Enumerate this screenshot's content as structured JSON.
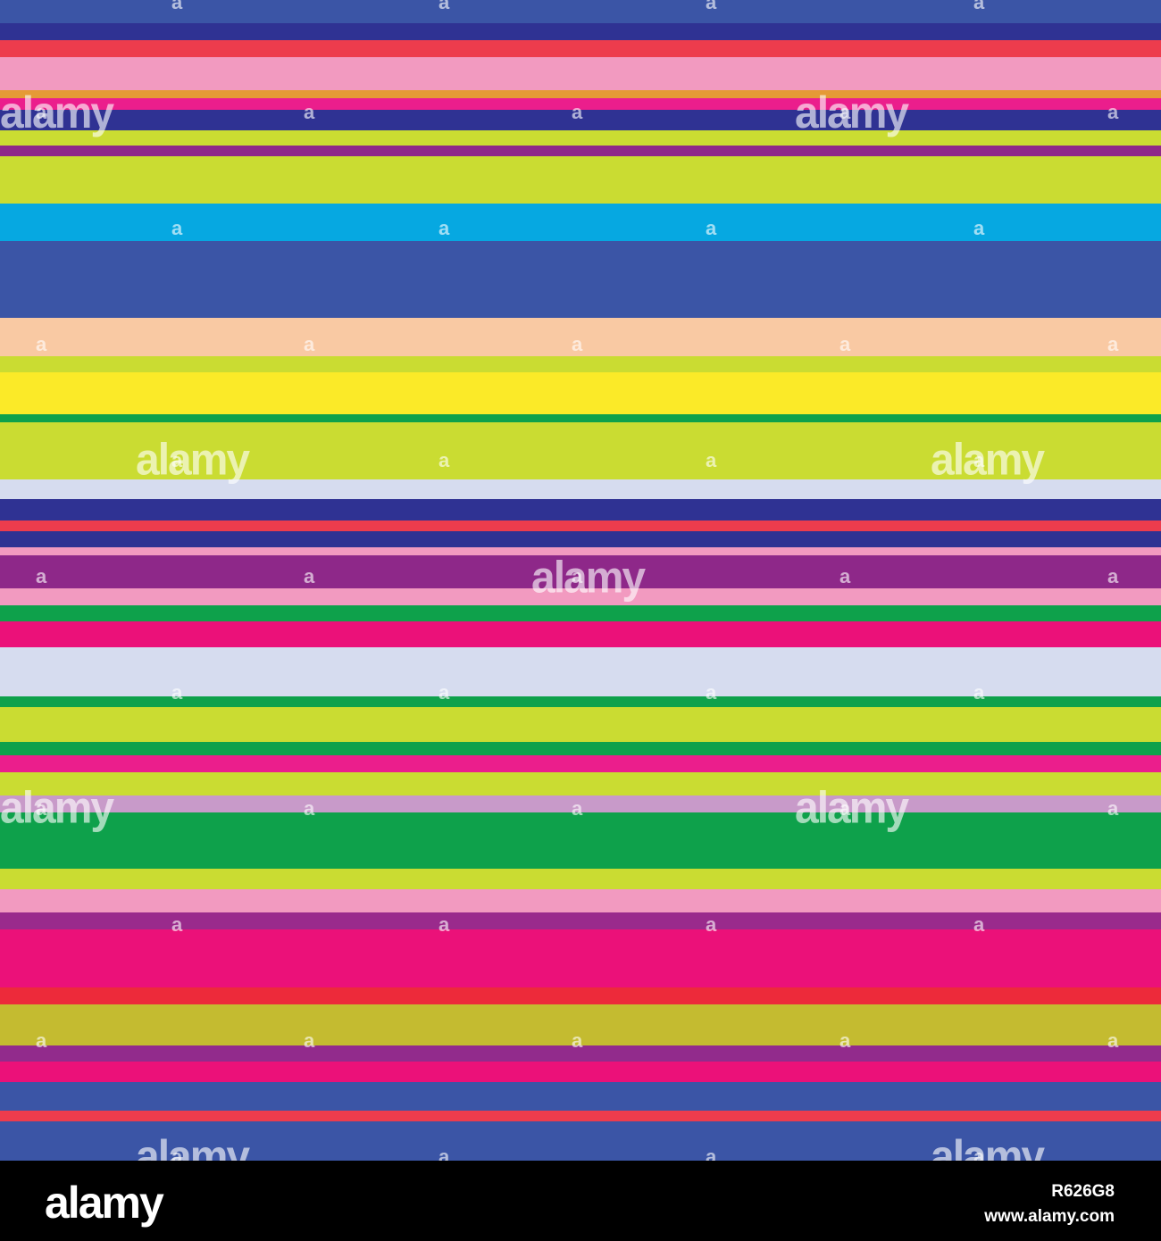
{
  "stripes": [
    "#3b55a6",
    "#2f3293",
    "#ed3c4d",
    "#f29ac0",
    "#e59a36",
    "#eb1e8c",
    "#2f3293",
    "#cadc32",
    "#8e2889",
    "#cadc32",
    "#06a8e1",
    "#3b55a6",
    "#f9c9a3",
    "#cadc32",
    "#fbea28",
    "#0ea14b",
    "#cadc32",
    "#d6dcef",
    "#2f3293",
    "#ed3c4d",
    "#2f3293",
    "#f29ac0",
    "#8e2889",
    "#f29ac0",
    "#0ea14b",
    "#eb1179",
    "#d6dcef",
    "#0ea14b",
    "#cadc32",
    "#0ea14b",
    "#eb1e8c",
    "#cadc32",
    "#c89ac9",
    "#0ea14b",
    "#cadc32",
    "#f29ac0",
    "#9a2a8c",
    "#eb1179",
    "#ed2a3a",
    "#c4bb30",
    "#922b8c",
    "#eb1179",
    "#3b55a6",
    "#ed3c4d",
    "#3b55a6"
  ],
  "watermark": {
    "logo_text": "alamy",
    "small_mark": "a"
  },
  "footer": {
    "logo": "alamy",
    "image_id": "R626G8",
    "url": "www.alamy.com"
  }
}
